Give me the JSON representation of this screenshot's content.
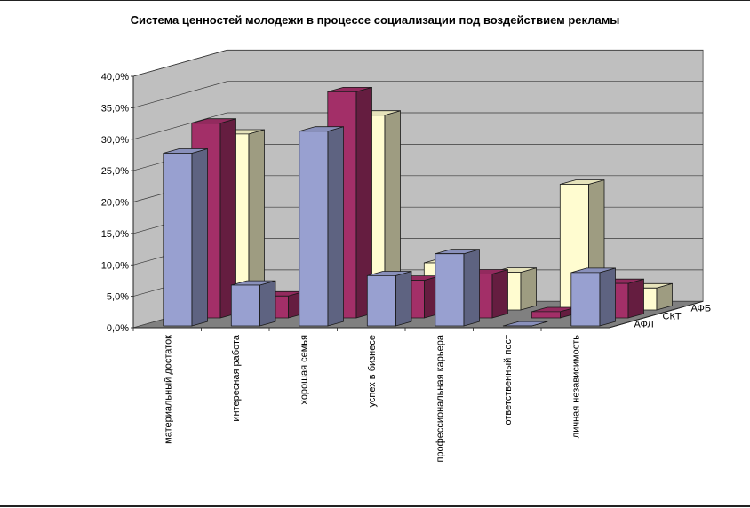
{
  "chart_data": {
    "type": "bar",
    "variant": "3d-clustered-depth",
    "title": "Система ценностей молодежи в процессе социализации под воздействием рекламы",
    "categories": [
      "материальный достаток",
      "интересная работа",
      "хорошая семья",
      "успех в бизнесе",
      "профессиональная карьера",
      "ответственный пост",
      "личная независимость"
    ],
    "series": [
      {
        "name": "АФЛ",
        "values": [
          27.5,
          6.5,
          31.0,
          8.0,
          11.5,
          0.0,
          8.5
        ]
      },
      {
        "name": "СКТ",
        "values": [
          31.0,
          3.5,
          36.0,
          6.0,
          7.0,
          1.0,
          5.5
        ]
      },
      {
        "name": "АФБ",
        "values": [
          28.0,
          1.0,
          31.0,
          7.5,
          6.0,
          20.0,
          3.5
        ]
      }
    ],
    "ylim": [
      0,
      40
    ],
    "yticks": [
      "0,0%",
      "5,0%",
      "10,0%",
      "15,0%",
      "20,0%",
      "25,0%",
      "30,0%",
      "35,0%",
      "40,0%"
    ],
    "grid": true,
    "colors": {
      "АФЛ": "#98a0d0",
      "СКТ": "#a32f68",
      "АФБ": "#fffcd0",
      "wall": "#bfbfbf",
      "floor": "#808080"
    }
  }
}
